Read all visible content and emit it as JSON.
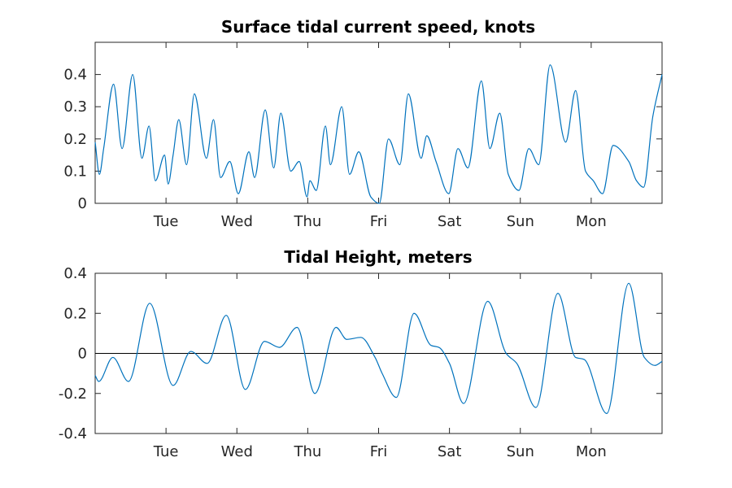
{
  "colors": {
    "series": "#0072BD",
    "axes": "#262626",
    "title": "#000000",
    "zero_line": "#000000"
  },
  "chart_data": [
    {
      "type": "line",
      "title": "Surface tidal current speed, knots",
      "xlabel": "",
      "ylabel": "",
      "x_unit": "days",
      "xlim": [
        0,
        8
      ],
      "ylim": [
        0,
        0.5
      ],
      "x_ticks": [
        {
          "x": 1,
          "label": "Tue"
        },
        {
          "x": 2,
          "label": "Wed"
        },
        {
          "x": 3,
          "label": "Thu"
        },
        {
          "x": 4,
          "label": "Fri"
        },
        {
          "x": 5,
          "label": "Sat"
        },
        {
          "x": 6,
          "label": "Sun"
        },
        {
          "x": 7,
          "label": "Mon"
        }
      ],
      "y_ticks": [
        {
          "y": 0,
          "label": "0"
        },
        {
          "y": 0.1,
          "label": "0.1"
        },
        {
          "y": 0.2,
          "label": "0.2"
        },
        {
          "y": 0.3,
          "label": "0.3"
        },
        {
          "y": 0.4,
          "label": "0.4"
        }
      ],
      "zero_line": false,
      "grid": false,
      "series": [
        {
          "x": [
            0.0,
            0.06,
            0.12,
            0.26,
            0.38,
            0.53,
            0.66,
            0.76,
            0.85,
            0.98,
            1.03,
            1.1,
            1.18,
            1.29,
            1.4,
            1.57,
            1.67,
            1.77,
            1.9,
            2.02,
            2.17,
            2.25,
            2.4,
            2.52,
            2.62,
            2.76,
            2.88,
            2.99,
            3.03,
            3.12,
            3.25,
            3.32,
            3.48,
            3.59,
            3.72,
            3.89,
            4.01,
            4.14,
            4.3,
            4.42,
            4.6,
            4.68,
            4.81,
            4.99,
            5.12,
            5.26,
            5.45,
            5.57,
            5.71,
            5.83,
            5.98,
            6.12,
            6.26,
            6.42,
            6.64,
            6.78,
            6.92,
            7.03,
            7.16,
            7.31,
            7.53,
            7.64,
            7.74,
            7.87,
            8.0
          ],
          "y": [
            0.19,
            0.09,
            0.17,
            0.37,
            0.17,
            0.4,
            0.14,
            0.24,
            0.07,
            0.15,
            0.06,
            0.15,
            0.26,
            0.12,
            0.34,
            0.14,
            0.26,
            0.08,
            0.13,
            0.03,
            0.16,
            0.08,
            0.29,
            0.11,
            0.28,
            0.1,
            0.13,
            0.02,
            0.07,
            0.04,
            0.24,
            0.12,
            0.3,
            0.09,
            0.16,
            0.02,
            0.0,
            0.2,
            0.12,
            0.34,
            0.14,
            0.21,
            0.13,
            0.03,
            0.17,
            0.11,
            0.38,
            0.17,
            0.28,
            0.09,
            0.04,
            0.17,
            0.12,
            0.43,
            0.19,
            0.35,
            0.1,
            0.07,
            0.03,
            0.18,
            0.13,
            0.07,
            0.05,
            0.27,
            0.4
          ]
        }
      ]
    },
    {
      "type": "line",
      "title": "Tidal Height, meters",
      "xlabel": "",
      "ylabel": "",
      "x_unit": "days",
      "xlim": [
        0,
        8
      ],
      "ylim": [
        -0.4,
        0.4
      ],
      "x_ticks": [
        {
          "x": 1,
          "label": "Tue"
        },
        {
          "x": 2,
          "label": "Wed"
        },
        {
          "x": 3,
          "label": "Thu"
        },
        {
          "x": 4,
          "label": "Fri"
        },
        {
          "x": 5,
          "label": "Sat"
        },
        {
          "x": 6,
          "label": "Sun"
        },
        {
          "x": 7,
          "label": "Mon"
        }
      ],
      "y_ticks": [
        {
          "y": -0.4,
          "label": "-0.4"
        },
        {
          "y": -0.2,
          "label": "-0.2"
        },
        {
          "y": 0,
          "label": "0"
        },
        {
          "y": 0.2,
          "label": "0.2"
        },
        {
          "y": 0.4,
          "label": "0.4"
        }
      ],
      "zero_line": true,
      "grid": false,
      "series": [
        {
          "x": [
            0.0,
            0.05,
            0.25,
            0.47,
            0.77,
            1.1,
            1.35,
            1.58,
            1.85,
            2.12,
            2.39,
            2.6,
            2.85,
            3.1,
            3.4,
            3.55,
            3.75,
            3.95,
            4.05,
            4.25,
            4.5,
            4.74,
            4.85,
            5.0,
            5.2,
            5.54,
            5.8,
            5.95,
            6.22,
            6.53,
            6.78,
            6.9,
            7.22,
            7.53,
            7.75,
            7.9,
            8.0
          ],
          "y": [
            -0.11,
            -0.14,
            -0.02,
            -0.14,
            0.25,
            -0.16,
            0.01,
            -0.05,
            0.19,
            -0.18,
            0.06,
            0.03,
            0.13,
            -0.2,
            0.13,
            0.07,
            0.08,
            -0.02,
            -0.1,
            -0.22,
            0.2,
            0.04,
            0.03,
            -0.05,
            -0.25,
            0.26,
            0.0,
            -0.05,
            -0.27,
            0.3,
            -0.02,
            -0.03,
            -0.3,
            0.35,
            -0.02,
            -0.06,
            -0.04
          ]
        }
      ]
    }
  ]
}
